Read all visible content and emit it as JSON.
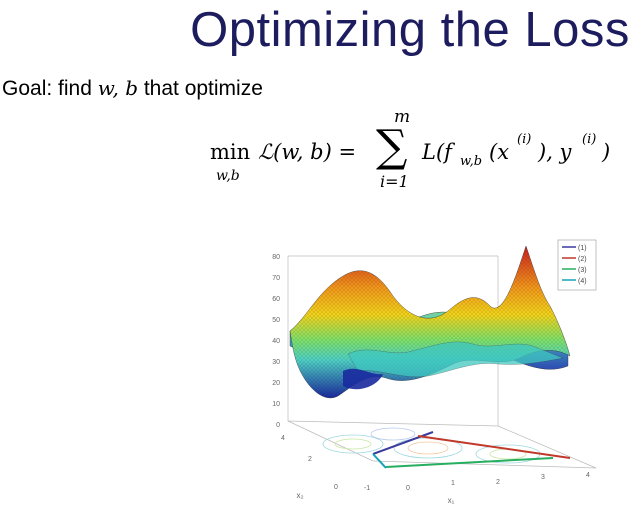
{
  "slide": {
    "title": "Optimizing the Loss",
    "goal_prefix": "Goal: find ",
    "goal_vars": "w, b",
    "goal_suffix": " that optimize"
  },
  "formula": {
    "min": "min",
    "min_sub": "w,b",
    "lhs": "ℒ(w, b) =",
    "sigma": "∑",
    "sum_upper": "m",
    "sum_lower": "i=1",
    "rhs": "L(f",
    "rhs_sub": "w,b",
    "rhs_rest": "(x",
    "sup1": "(i)",
    "rhs_mid": "), y",
    "sup2": "(i)",
    "rhs_end": ")"
  },
  "plot": {
    "z_ticks": [
      "80",
      "70",
      "60",
      "50",
      "40",
      "30",
      "20",
      "10",
      "0"
    ],
    "x1_ticks": [
      "-1",
      "0",
      "1",
      "2",
      "3",
      "4"
    ],
    "x2_ticks": [
      "0",
      "2",
      "4"
    ],
    "x1_label": "x₁",
    "x2_label": "x₂",
    "legend": [
      {
        "label": "(1)",
        "color": "#3b3b9e"
      },
      {
        "label": "(2)",
        "color": "#c0392b"
      },
      {
        "label": "(3)",
        "color": "#27ae60"
      },
      {
        "label": "(4)",
        "color": "#16a3b5"
      }
    ],
    "surface_colors": {
      "high": "#cc1f1f",
      "mid_high": "#f2d21b",
      "mid": "#4fd1c5",
      "low": "#1a2a9e"
    }
  }
}
